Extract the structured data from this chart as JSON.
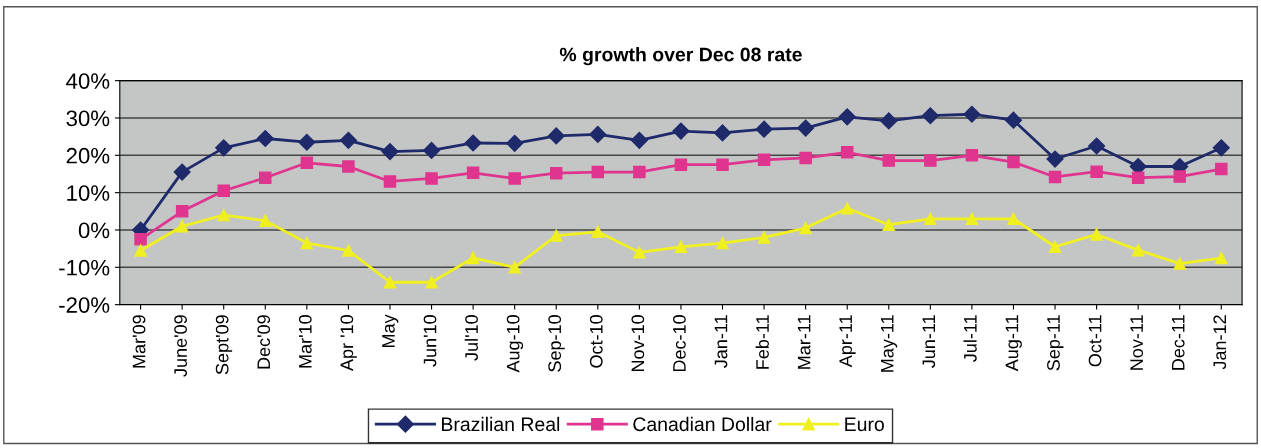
{
  "chart_data": {
    "type": "line",
    "title": "% growth over Dec 08 rate",
    "categories": [
      "Mar'09",
      "June'09",
      "Sept'09",
      "Dec'09",
      "Mar'10",
      "Apr '10",
      "May",
      "Jun'10",
      "Jul'10",
      "Aug-10",
      "Sep-10",
      "Oct-10",
      "Nov-10",
      "Dec-10",
      "Jan-11",
      "Feb-11",
      "Mar-11",
      "Apr-11",
      "May-11",
      "Jun-11",
      "Jul-11",
      "Aug-11",
      "Sep-11",
      "Oct-11",
      "Nov-11",
      "Dec-11",
      "Jan-12"
    ],
    "series": [
      {
        "name": "Brazilian Real",
        "color": "#1f2a6b",
        "marker": "diamond",
        "values": [
          0,
          15.5,
          22,
          24.5,
          23.5,
          24,
          21,
          21.3,
          23.3,
          23.2,
          25.2,
          25.6,
          24,
          26.5,
          26,
          27,
          27.3,
          30.3,
          29.2,
          30.6,
          31,
          29.4,
          19,
          22.5,
          17,
          17,
          22
        ]
      },
      {
        "name": "Canadian Dollar",
        "color": "#e0358f",
        "marker": "square",
        "values": [
          -2.5,
          5,
          10.5,
          14,
          18,
          17,
          13,
          13.8,
          15.3,
          13.8,
          15.2,
          15.5,
          15.5,
          17.5,
          17.5,
          18.8,
          19.3,
          20.8,
          18.6,
          18.6,
          20,
          18.2,
          14.2,
          15.6,
          14,
          14.3,
          16.3
        ]
      },
      {
        "name": "Euro",
        "color": "#f0f020",
        "marker": "triangle",
        "values": [
          -5.5,
          1,
          4,
          2.5,
          -3.5,
          -5.5,
          -14,
          -14,
          -7.5,
          -10,
          -1.5,
          -0.5,
          -6,
          -4.5,
          -3.5,
          -2,
          0.5,
          5.8,
          1.4,
          3,
          3,
          3,
          -4.5,
          -1.2,
          -5.4,
          -9,
          -7.5
        ]
      }
    ],
    "ylim": [
      -20,
      40
    ],
    "yticks": [
      {
        "value": -20,
        "label": "-20%"
      },
      {
        "value": -10,
        "label": "-10%"
      },
      {
        "value": 0,
        "label": "0%"
      },
      {
        "value": 10,
        "label": "10%"
      },
      {
        "value": 20,
        "label": "20%"
      },
      {
        "value": 30,
        "label": "30%"
      },
      {
        "value": 40,
        "label": "40%"
      }
    ],
    "grid": "y",
    "legend": "bottom",
    "line_style": "solid"
  }
}
